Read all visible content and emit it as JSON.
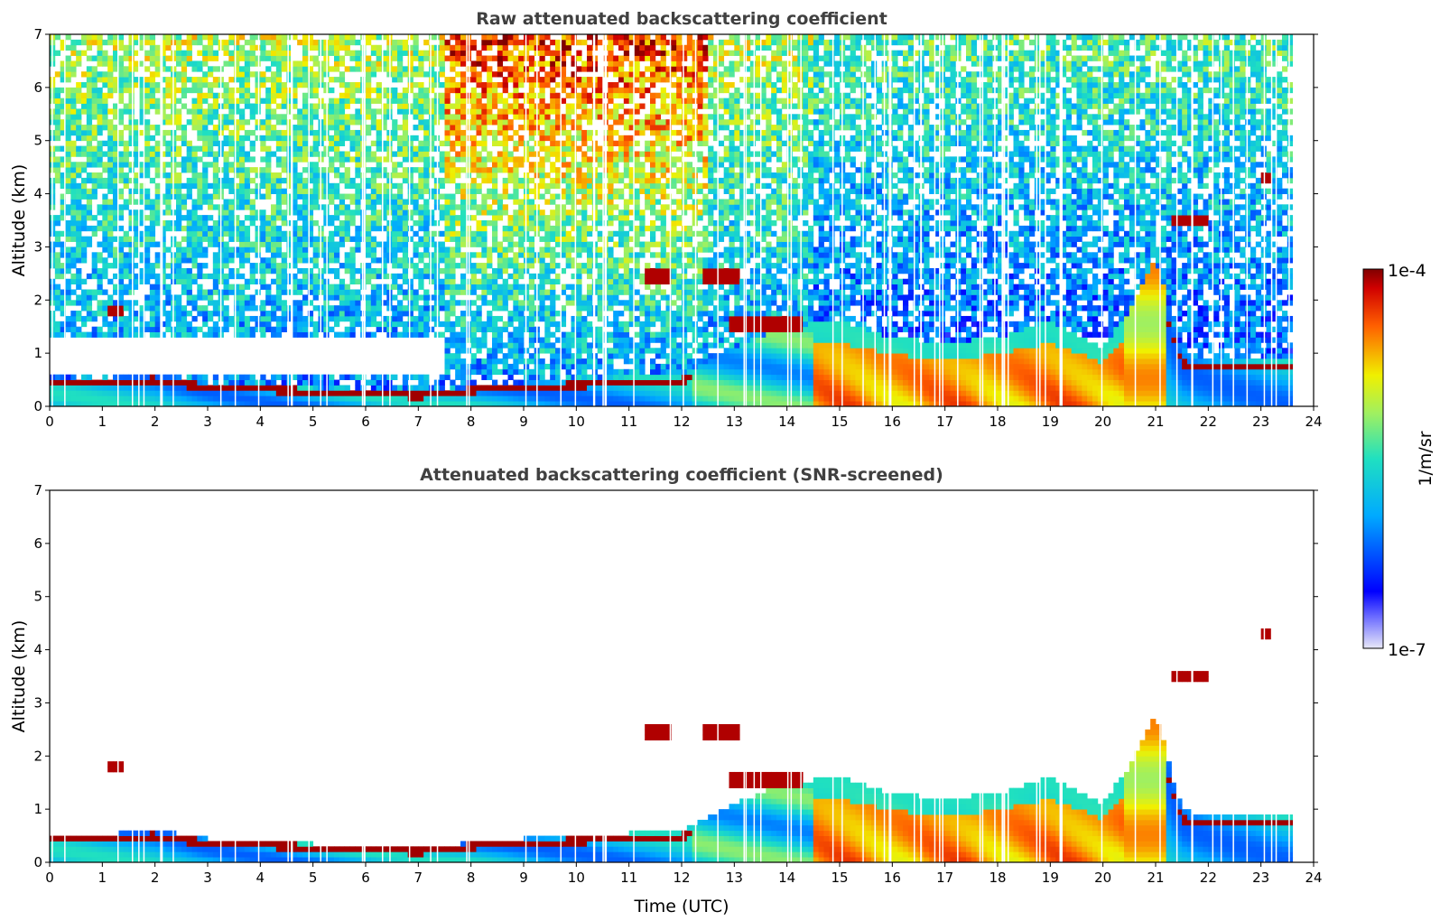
{
  "chart_data": [
    {
      "type": "heatmap",
      "title": "Raw attenuated backscattering coefficient",
      "xlabel": "",
      "ylabel": "Altitude (km)",
      "xlim": [
        0,
        24
      ],
      "ylim": [
        0,
        7
      ],
      "xticks": [
        0,
        1,
        2,
        3,
        4,
        5,
        6,
        7,
        8,
        9,
        10,
        11,
        12,
        13,
        14,
        15,
        16,
        17,
        18,
        19,
        20,
        21,
        22,
        23,
        24
      ],
      "yticks": [
        0,
        1,
        2,
        3,
        4,
        5,
        6,
        7
      ],
      "data_end_time": 23.6,
      "noise": "high",
      "boundary_layer_top": [
        [
          0,
          0.52
        ],
        [
          1,
          0.52
        ],
        [
          2,
          0.62
        ],
        [
          3,
          0.45
        ],
        [
          4,
          0.4
        ],
        [
          5,
          0.35
        ],
        [
          6,
          0.3
        ],
        [
          7,
          0.25
        ],
        [
          8,
          0.38
        ],
        [
          9,
          0.45
        ],
        [
          10,
          0.5
        ],
        [
          11,
          0.55
        ],
        [
          12,
          0.6
        ],
        [
          13,
          1.1
        ],
        [
          14,
          1.5
        ],
        [
          15,
          1.6
        ],
        [
          16,
          1.3
        ],
        [
          17,
          1.2
        ],
        [
          18,
          1.3
        ],
        [
          19,
          1.6
        ],
        [
          20,
          1.1
        ],
        [
          20.5,
          1.8
        ],
        [
          21,
          2.8
        ],
        [
          21.5,
          1.0
        ],
        [
          22,
          0.9
        ],
        [
          23,
          0.9
        ],
        [
          23.6,
          0.9
        ]
      ],
      "cloud_layers": [
        {
          "t0": 1.1,
          "t1": 1.35,
          "z0": 1.7,
          "z1": 1.9
        },
        {
          "t0": 11.3,
          "t1": 11.8,
          "z0": 2.3,
          "z1": 2.6
        },
        {
          "t0": 12.4,
          "t1": 13.1,
          "z0": 2.3,
          "z1": 2.55
        },
        {
          "t0": 12.9,
          "t1": 14.3,
          "z0": 1.45,
          "z1": 1.7
        },
        {
          "t0": 21.3,
          "t1": 22.0,
          "z0": 3.4,
          "z1": 3.6
        },
        {
          "t0": 23.0,
          "t1": 23.2,
          "z0": 4.25,
          "z1": 4.4
        }
      ]
    },
    {
      "type": "heatmap",
      "title": "Attenuated backscattering coefficient (SNR-screened)",
      "xlabel": "Time (UTC)",
      "ylabel": "Altitude (km)",
      "xlim": [
        0,
        24
      ],
      "ylim": [
        0,
        7
      ],
      "xticks": [
        0,
        1,
        2,
        3,
        4,
        5,
        6,
        7,
        8,
        9,
        10,
        11,
        12,
        13,
        14,
        15,
        16,
        17,
        18,
        19,
        20,
        21,
        22,
        23,
        24
      ],
      "yticks": [
        0,
        1,
        2,
        3,
        4,
        5,
        6,
        7
      ],
      "data_end_time": 23.6,
      "noise": "none"
    }
  ],
  "colorbar": {
    "label": "1/m/sr",
    "max_label": "1e-4",
    "min_label": "1e-7",
    "min": 1e-07,
    "max": 0.0001,
    "scale": "log",
    "colormap": "jet"
  }
}
